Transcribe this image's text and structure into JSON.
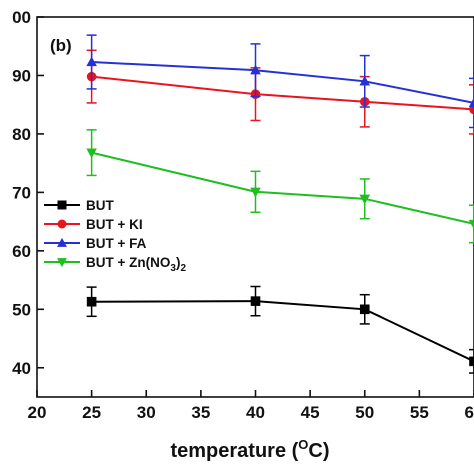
{
  "chart_data": {
    "type": "line",
    "panel_label": "(b)",
    "xlabel": {
      "main": "temperature (",
      "sup": "O",
      "tail": "C)"
    },
    "ylabel": "",
    "xlim": [
      20,
      60
    ],
    "ylim": [
      35,
      100
    ],
    "x_ticks": [
      20,
      25,
      30,
      35,
      40,
      45,
      50,
      55,
      60
    ],
    "y_ticks": [
      40,
      50,
      60,
      70,
      80,
      90
    ],
    "y_top_label": "00",
    "x": [
      25,
      40,
      50,
      60
    ],
    "legend_position": "center-left",
    "series": [
      {
        "name": "BUT",
        "label_parts": [
          "BUT"
        ],
        "color": "#000000",
        "marker": "square",
        "values": [
          51.3,
          51.4,
          50.0,
          41.1
        ],
        "errors": [
          2.5,
          2.5,
          2.5,
          2.0
        ]
      },
      {
        "name": "BUT + KI",
        "label_parts": [
          "BUT + KI"
        ],
        "color": "#e8141e",
        "marker": "circle",
        "values": [
          89.8,
          86.8,
          85.5,
          84.2
        ],
        "errors": [
          4.5,
          4.5,
          4.3,
          4.2
        ]
      },
      {
        "name": "BUT + FA",
        "label_parts": [
          "BUT + FA"
        ],
        "color": "#2431d6",
        "marker": "triangle-up",
        "values": [
          92.3,
          90.9,
          89.0,
          85.3
        ],
        "errors": [
          4.6,
          4.5,
          4.4,
          4.2
        ]
      },
      {
        "name": "BUT + Zn(NO3)2",
        "label_parts": [
          "BUT + Zn(NO",
          "3",
          ")",
          "2"
        ],
        "color": "#1fbf1f",
        "marker": "triangle-down",
        "values": [
          76.8,
          70.1,
          68.9,
          64.6
        ],
        "errors": [
          3.9,
          3.5,
          3.4,
          3.2
        ]
      }
    ]
  }
}
